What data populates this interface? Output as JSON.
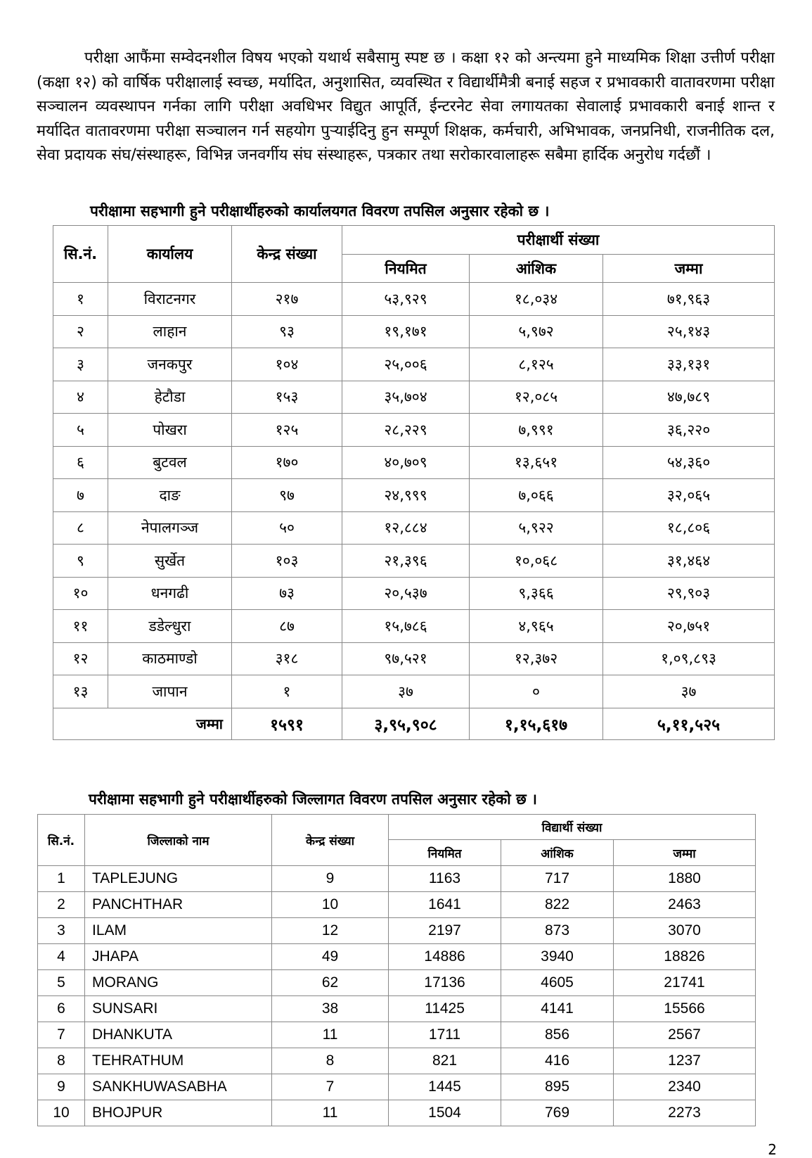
{
  "paragraph": "परीक्षा आफैंमा सम्वेदनशील विषय भएको यथार्थ सबैसामु स्पष्ट छ । कक्षा १२ को अन्त्यमा हुने माध्यमिक शिक्षा उत्तीर्ण परीक्षा (कक्षा १२) को वार्षिक परीक्षालाई स्वच्छ, मर्यादित, अनुशासित, व्यवस्थित र विद्यार्थीमैत्री बनाई सहज र प्रभावकारी वातावरणमा परीक्षा सञ्चालन व्यवस्थापन गर्नका लागि परीक्षा अवधिभर विद्युत आपूर्ति, ईन्टरनेट सेवा लगायतका सेवालाई प्रभावकारी बनाई शान्त र मर्यादित वातावरणमा परीक्षा सञ्चालन गर्न सहयोग पुर्‍याईदिनु हुन सम्पूर्ण शिक्षक, कर्मचारी, अभिभावक, जनप्रनिधी, राजनीतिक दल, सेवा प्रदायक संघ/संस्थाहरू, विभिन्न जनवर्गीय संघ संस्थाहरू, पत्रकार तथा सरोकारवालाहरू सबैमा हार्दिक अनुरोध गर्दछौं ।",
  "table1": {
    "title": "परीक्षामा सहभागी हुने परीक्षार्थीहरुको कार्यालयगत विवरण तपसिल अनुसार रहेको छ ।",
    "headers": {
      "sn": "सि.नं.",
      "office": "कार्यालय",
      "centers": "केन्द्र संख्या",
      "group": "परीक्षार्थी संख्या",
      "regular": "नियमित",
      "partial": "आंशिक",
      "total": "जम्मा"
    },
    "rows": [
      [
        "१",
        "विराटनगर",
        "२१७",
        "५३,९२९",
        "१८,०३४",
        "७१,९६३"
      ],
      [
        "२",
        "लाहान",
        "९३",
        "१९,१७१",
        "५,९७२",
        "२५,१४३"
      ],
      [
        "३",
        "जनकपुर",
        "१०४",
        "२५,००६",
        "८,१२५",
        "३३,१३१"
      ],
      [
        "४",
        "हेटौडा",
        "१५३",
        "३५,७०४",
        "१२,०८५",
        "४७,७८९"
      ],
      [
        "५",
        "पोखरा",
        "१२५",
        "२८,२२९",
        "७,९९१",
        "३६,२२०"
      ],
      [
        "६",
        "बुटवल",
        "१७०",
        "४०,७०९",
        "१३,६५१",
        "५४,३६०"
      ],
      [
        "७",
        "दाङ",
        "९७",
        "२४,९९९",
        "७,०६६",
        "३२,०६५"
      ],
      [
        "८",
        "नेपालगञ्ज",
        "५०",
        "१२,८८४",
        "५,९२२",
        "१८,८०६"
      ],
      [
        "९",
        "सुर्खेत",
        "१०३",
        "२१,३९६",
        "१०,०६८",
        "३१,४६४"
      ],
      [
        "१०",
        "धनगढी",
        "७३",
        "२०,५३७",
        "९,३६६",
        "२९,९०३"
      ],
      [
        "११",
        "डडेल्धुरा",
        "८७",
        "१५,७८६",
        "४,९६५",
        "२०,७५१"
      ],
      [
        "१२",
        "काठमाण्डो",
        "३१८",
        "९७,५२१",
        "१२,३७२",
        "१,०९,८९३"
      ],
      [
        "१३",
        "जापान",
        "१",
        "३७",
        "०",
        "३७"
      ]
    ],
    "footer": {
      "label": "जम्मा",
      "centers": "१५९१",
      "regular": "३,९५,९०८",
      "partial": "१,१५,६१७",
      "total": "५,११,५२५"
    }
  },
  "table2": {
    "title": "परीक्षामा सहभागी हुने परीक्षार्थीहरुको जिल्लागत विवरण तपसिल अनुसार रहेको छ ।",
    "headers": {
      "sn": "सि.नं.",
      "district": "जिल्लाको नाम",
      "centers": "केन्द्र संख्या",
      "group": "विद्यार्थी संख्या",
      "regular": "नियमित",
      "partial": "आंशिक",
      "total": "जम्मा"
    },
    "rows": [
      [
        "1",
        "TAPLEJUNG",
        "9",
        "1163",
        "717",
        "1880"
      ],
      [
        "2",
        "PANCHTHAR",
        "10",
        "1641",
        "822",
        "2463"
      ],
      [
        "3",
        "ILAM",
        "12",
        "2197",
        "873",
        "3070"
      ],
      [
        "4",
        "JHAPA",
        "49",
        "14886",
        "3940",
        "18826"
      ],
      [
        "5",
        "MORANG",
        "62",
        "17136",
        "4605",
        "21741"
      ],
      [
        "6",
        "SUNSARI",
        "38",
        "11425",
        "4141",
        "15566"
      ],
      [
        "7",
        "DHANKUTA",
        "11",
        "1711",
        "856",
        "2567"
      ],
      [
        "8",
        "TEHRATHUM",
        "8",
        "821",
        "416",
        "1237"
      ],
      [
        "9",
        "SANKHUWASABHA",
        "7",
        "1445",
        "895",
        "2340"
      ],
      [
        "10",
        "BHOJPUR",
        "11",
        "1504",
        "769",
        "2273"
      ]
    ]
  },
  "page_number": "2"
}
